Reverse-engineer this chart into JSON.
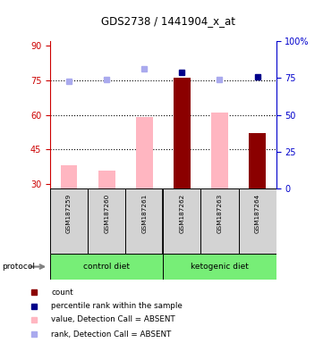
{
  "title": "GDS2738 / 1441904_x_at",
  "samples": [
    "GSM187259",
    "GSM187260",
    "GSM187261",
    "GSM187262",
    "GSM187263",
    "GSM187264"
  ],
  "ylim_left": [
    28,
    92
  ],
  "ylim_right": [
    0,
    100
  ],
  "yticks_left": [
    30,
    45,
    60,
    75,
    90
  ],
  "yticks_right": [
    0,
    25,
    50,
    75,
    100
  ],
  "pink_bars": {
    "indices": [
      0,
      1,
      2,
      4
    ],
    "values": [
      38,
      36,
      59,
      61
    ]
  },
  "dark_red_bars": {
    "indices": [
      3,
      5
    ],
    "values": [
      76,
      52
    ]
  },
  "blue_squares": {
    "indices": [
      0,
      1,
      2,
      3,
      4,
      5
    ],
    "values": [
      73,
      74,
      81,
      79,
      74,
      76
    ],
    "absent_indices": [
      0,
      1,
      2,
      4
    ]
  },
  "colors": {
    "pink_bar": "#FFB6C1",
    "dark_red_bar": "#8B0000",
    "blue_square": "#00008B",
    "light_blue_square": "#AAAAEE",
    "group_box_bg": "#d3d3d3",
    "protocol_bg": "#77EE77",
    "left_axis": "#CC0000",
    "right_axis": "#0000CC"
  },
  "legend_labels": [
    "count",
    "percentile rank within the sample",
    "value, Detection Call = ABSENT",
    "rank, Detection Call = ABSENT"
  ],
  "legend_colors": [
    "#8B0000",
    "#00008B",
    "#FFB6C1",
    "#AAAAEE"
  ]
}
